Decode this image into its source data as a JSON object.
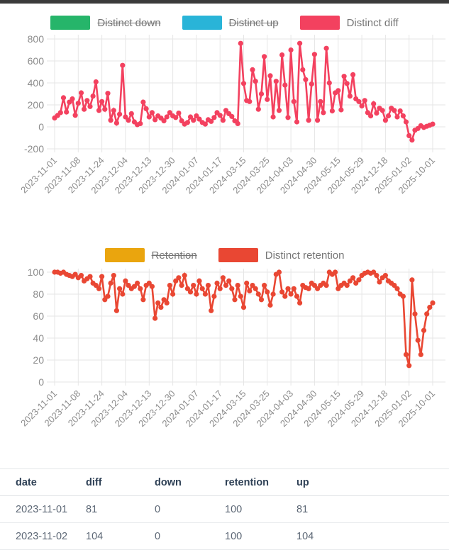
{
  "table": {
    "columns": [
      "date",
      "diff",
      "down",
      "retention",
      "up"
    ],
    "rows": [
      [
        "2023-11-01",
        "81",
        "0",
        "100",
        "81"
      ],
      [
        "2023-11-02",
        "104",
        "0",
        "100",
        "104"
      ]
    ]
  },
  "chart_data": [
    {
      "type": "line",
      "title": "",
      "legend_position": "top",
      "grid": true,
      "legend": [
        {
          "label": "Distinct down",
          "color": "#26b56a",
          "struck": true
        },
        {
          "label": "Distinct up",
          "color": "#29b4d8",
          "struck": true
        },
        {
          "label": "Distinct diff",
          "color": "#f3415f",
          "struck": false
        }
      ],
      "x_tick_labels": [
        "2023-11-01",
        "2023-11-08",
        "2023-11-24",
        "2023-12-04",
        "2023-12-13",
        "2023-12-30",
        "2024-01-07",
        "2024-01-17",
        "2024-03-15",
        "2024-03-25",
        "2024-04-03",
        "2024-04-30",
        "2024-05-15",
        "2024-05-29",
        "2024-12-18",
        "2025-01-02",
        "2025-10-01"
      ],
      "ylim": [
        -200,
        800
      ],
      "y_ticks": [
        800,
        600,
        400,
        200,
        0,
        -200
      ],
      "series": [
        {
          "name": "Distinct diff",
          "color": "#f3415f",
          "values": [
            81,
            104,
            130,
            265,
            135,
            225,
            255,
            105,
            215,
            310,
            160,
            240,
            185,
            280,
            410,
            150,
            230,
            160,
            305,
            60,
            150,
            35,
            115,
            560,
            90,
            60,
            120,
            45,
            20,
            30,
            225,
            165,
            90,
            130,
            65,
            100,
            80,
            55,
            90,
            130,
            100,
            85,
            125,
            55,
            25,
            40,
            90,
            60,
            100,
            70,
            40,
            25,
            65,
            50,
            85,
            130,
            105,
            60,
            150,
            120,
            95,
            55,
            30,
            760,
            395,
            240,
            230,
            520,
            415,
            160,
            300,
            640,
            250,
            465,
            90,
            415,
            150,
            655,
            380,
            85,
            700,
            230,
            45,
            760,
            520,
            430,
            60,
            390,
            660,
            60,
            230,
            130,
            715,
            400,
            145,
            310,
            330,
            155,
            460,
            395,
            280,
            475,
            255,
            230,
            190,
            240,
            130,
            100,
            210,
            125,
            170,
            150,
            60,
            100,
            170,
            150,
            90,
            145,
            100,
            45,
            -80,
            -120,
            -30,
            -15,
            10,
            -5,
            5,
            15,
            25
          ]
        }
      ],
      "hidden_series": [
        "Distinct down",
        "Distinct up"
      ]
    },
    {
      "type": "line",
      "title": "",
      "legend_position": "top",
      "grid": true,
      "legend": [
        {
          "label": "Retention",
          "color": "#eaa50e",
          "struck": true
        },
        {
          "label": "Distinct retention",
          "color": "#e94733",
          "struck": false
        }
      ],
      "x_tick_labels": [
        "2023-11-01",
        "2023-11-08",
        "2023-11-24",
        "2023-12-04",
        "2023-12-13",
        "2023-12-30",
        "2024-01-07",
        "2024-01-17",
        "2024-03-15",
        "2024-03-25",
        "2024-04-03",
        "2024-04-30",
        "2024-05-15",
        "2024-05-29",
        "2024-12-18",
        "2025-01-02",
        "2025-10-01"
      ],
      "ylim": [
        0,
        100
      ],
      "y_ticks": [
        100,
        80,
        60,
        40,
        20,
        0
      ],
      "series": [
        {
          "name": "Distinct retention",
          "color": "#e94733",
          "values": [
            100,
            100,
            99,
            100,
            98,
            97,
            96,
            98,
            95,
            97,
            92,
            94,
            96,
            90,
            88,
            85,
            96,
            75,
            78,
            90,
            97,
            65,
            85,
            80,
            92,
            88,
            85,
            87,
            90,
            85,
            75,
            88,
            90,
            87,
            58,
            72,
            68,
            75,
            72,
            88,
            80,
            92,
            95,
            88,
            97,
            85,
            82,
            88,
            80,
            92,
            85,
            80,
            88,
            65,
            78,
            90,
            85,
            95,
            88,
            92,
            85,
            75,
            88,
            78,
            68,
            90,
            83,
            88,
            85,
            80,
            75,
            88,
            82,
            70,
            80,
            98,
            100,
            82,
            78,
            85,
            80,
            85,
            78,
            72,
            88,
            86,
            85,
            90,
            88,
            85,
            88,
            90,
            88,
            100,
            98,
            100,
            85,
            88,
            90,
            88,
            92,
            95,
            90,
            93,
            97,
            99,
            100,
            99,
            100,
            97,
            91,
            95,
            97,
            92,
            90,
            88,
            85,
            80,
            78,
            25,
            15,
            93,
            62,
            38,
            25,
            47,
            62,
            68,
            72
          ]
        }
      ],
      "hidden_series": [
        "Retention"
      ]
    }
  ],
  "colors": {
    "grid": "#e6e6e6",
    "tick_text": "#8c8c8c",
    "legend_text": "#757575",
    "top_bar": "#3b3b3b"
  }
}
